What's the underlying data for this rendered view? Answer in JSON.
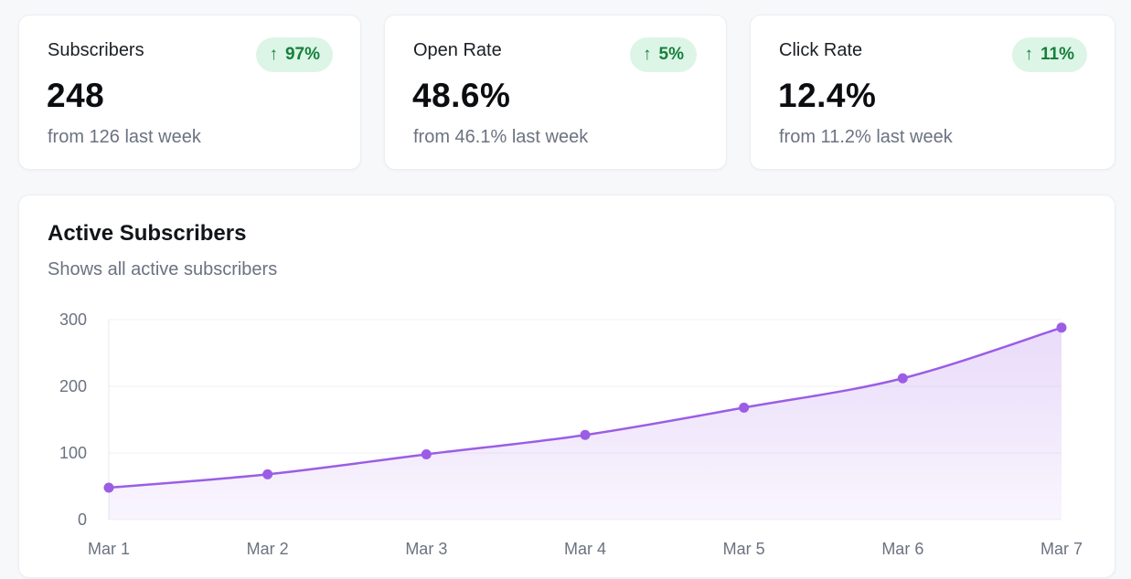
{
  "stats": [
    {
      "label": "Subscribers",
      "value": "248",
      "sub": "from 126 last week",
      "change": "97%"
    },
    {
      "label": "Open Rate",
      "value": "48.6%",
      "sub": "from 46.1% last week",
      "change": "5%"
    },
    {
      "label": "Click Rate",
      "value": "12.4%",
      "sub": "from 11.2% last week",
      "change": "11%"
    }
  ],
  "colors": {
    "accent": "#9b5de5",
    "badge_bg": "#dcf5e6",
    "badge_text": "#16803c"
  },
  "chart": {
    "title": "Active Subscribers",
    "subtitle": "Shows all active subscribers"
  },
  "chart_data": {
    "type": "area",
    "title": "Active Subscribers",
    "subtitle": "Shows all active subscribers",
    "categories": [
      "Mar 1",
      "Mar 2",
      "Mar 3",
      "Mar 4",
      "Mar 5",
      "Mar 6",
      "Mar 7"
    ],
    "values": [
      48,
      68,
      98,
      127,
      168,
      212,
      288
    ],
    "yticks": [
      0,
      100,
      200,
      300
    ],
    "ylim": [
      0,
      300
    ],
    "grid": true,
    "legend": "none"
  }
}
